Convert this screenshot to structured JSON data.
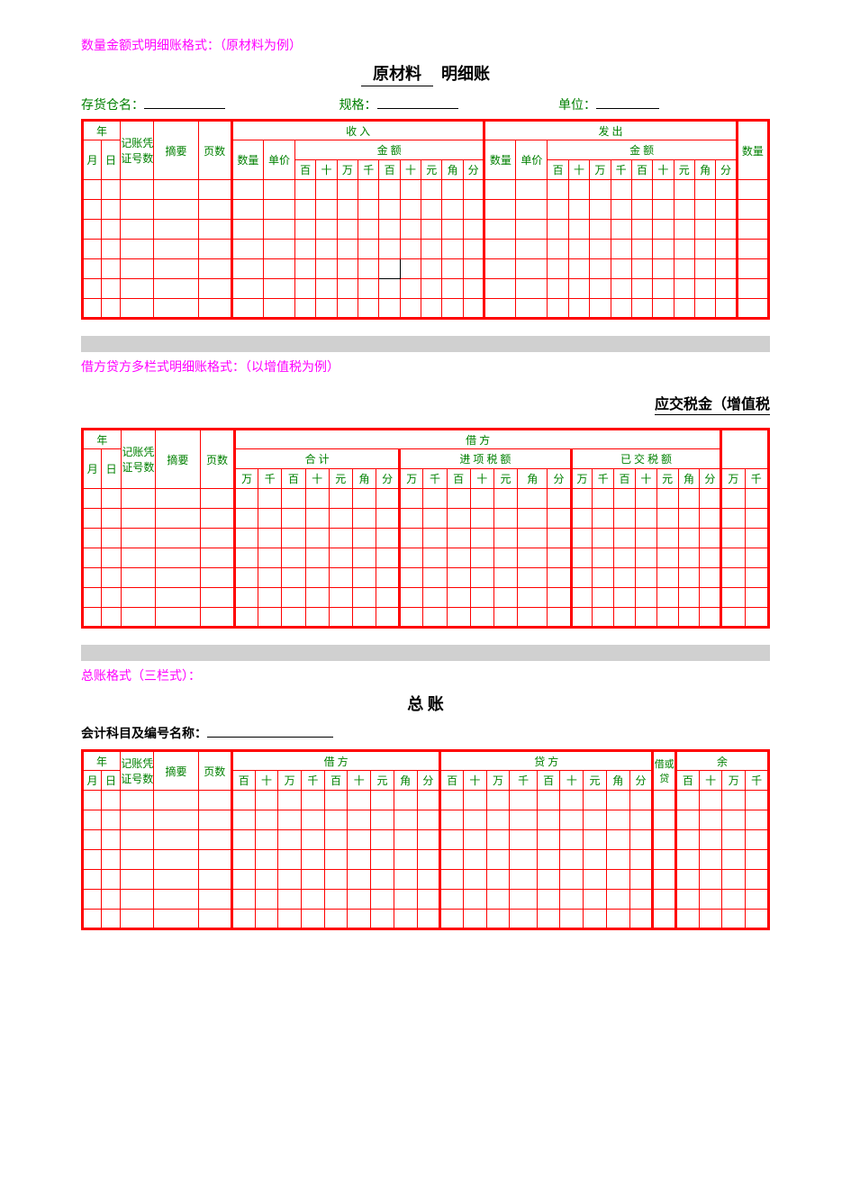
{
  "colors": {
    "border": "#ff0000",
    "header_text": "#008000",
    "label_pink": "#ff00ff",
    "body_text": "#000000",
    "grey_bar": "#d0d0d0",
    "background": "#ffffff"
  },
  "section1": {
    "pink_label": "数量金额式明细账格式：（原材料为例）",
    "title_underlined": "原材料",
    "title_suffix": "明细账",
    "fields": {
      "warehouse_label": "存货仓名：",
      "spec_label": "规格：",
      "unit_label": "单位："
    },
    "headers": {
      "year": "年",
      "voucher": "记账凭证号数",
      "summary": "摘要",
      "pages": "页数",
      "month": "月",
      "day": "日",
      "income": "收 入",
      "outgo": "发 出",
      "qty": "数量",
      "price": "单价",
      "amount": "金 额",
      "digits": [
        "百",
        "十",
        "万",
        "千",
        "百",
        "十",
        "元",
        "角",
        "分"
      ]
    },
    "empty_rows": 7,
    "marked_cell": {
      "row": 5,
      "col": 11
    }
  },
  "section2": {
    "pink_label": "借方贷方多栏式明细账格式：（以增值税为例）",
    "right_title": "应交税金（增值税",
    "headers": {
      "year": "年",
      "voucher": "记账凭证号数",
      "summary": "摘要",
      "pages": "页数",
      "month": "月",
      "day": "日",
      "debit_side": "借    方",
      "total": "合 计",
      "input_tax": "进 项 税 额",
      "paid_tax": "已 交 税 额",
      "digits7": [
        "万",
        "千",
        "百",
        "十",
        "元",
        "角",
        "分"
      ],
      "digits2": [
        "万",
        "千"
      ]
    },
    "empty_rows": 7
  },
  "section3": {
    "pink_label": "总账格式（三栏式）：",
    "title": "总  账",
    "sub_label": "会计科目及编号名称：",
    "headers": {
      "year": "年",
      "voucher": "记账凭证号数",
      "summary": "摘要",
      "pages": "页数",
      "month": "月",
      "day": "日",
      "debit": "借 方",
      "credit": "贷 方",
      "dorc": "借或贷",
      "balance": "余",
      "digits9": [
        "百",
        "十",
        "万",
        "千",
        "百",
        "十",
        "元",
        "角",
        "分"
      ],
      "digits4": [
        "百",
        "十",
        "万",
        "千"
      ]
    },
    "empty_rows": 7
  }
}
